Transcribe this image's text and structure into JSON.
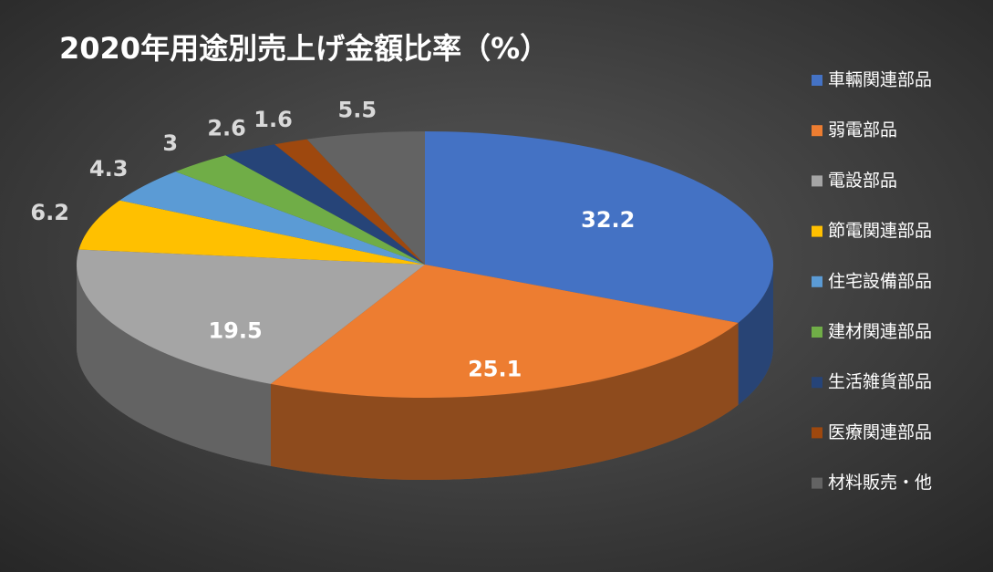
{
  "chart_data": {
    "type": "pie3d",
    "title": "2020年用途別売上げ金額比率（%）",
    "categories": [
      "車輛関連部品",
      "弱電部品",
      "電設部品",
      "節電関連部品",
      "住宅設備部品",
      "建材関連部品",
      "生活雑貨部品",
      "医療関連部品",
      "材料販売・他"
    ],
    "values": [
      32.2,
      25.1,
      19.5,
      6.2,
      4.3,
      3,
      2.6,
      1.6,
      5.5
    ],
    "colors": [
      "#4472c4",
      "#ed7d31",
      "#a5a5a5",
      "#ffc000",
      "#5b9bd5",
      "#70ad47",
      "#264478",
      "#9e480e",
      "#636363"
    ],
    "legend": "right"
  }
}
